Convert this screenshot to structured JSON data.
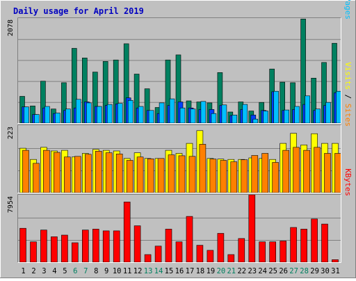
{
  "chart_data": {
    "type": "bar",
    "title": "Daily usage for April 2019",
    "categories": [
      "1",
      "2",
      "3",
      "4",
      "5",
      "6",
      "7",
      "8",
      "9",
      "10",
      "11",
      "12",
      "13",
      "14",
      "15",
      "16",
      "17",
      "18",
      "19",
      "20",
      "21",
      "22",
      "23",
      "24",
      "25",
      "26",
      "27",
      "28",
      "29",
      "30",
      "31"
    ],
    "weekend_days": [
      "6",
      "7",
      "13",
      "14",
      "20",
      "21",
      "27",
      "28"
    ],
    "panels": [
      {
        "id": "hits-files-pages",
        "ymax_label": "2078",
        "ylim": [
          0,
          2078
        ],
        "axis_labels": [
          {
            "text": "Pages",
            "color": "#00c0ff"
          },
          {
            "text": "Files",
            "color": "#0040ff"
          },
          {
            "text": "Hits",
            "color": "#008060"
          }
        ],
        "series": [
          {
            "name": "Hits",
            "color": "#008060",
            "values": [
              530,
              340,
              830,
              280,
              800,
              1480,
              1290,
              1010,
              1220,
              1250,
              1570,
              970,
              680,
              310,
              1250,
              1350,
              440,
              420,
              400,
              1000,
              220,
              420,
              240,
              410,
              1070,
              810,
              800,
              2060,
              890,
              1200,
              1580
            ]
          },
          {
            "name": "Files",
            "color": "#0040ff",
            "values": [
              320,
              170,
              300,
              190,
              250,
              300,
              420,
              330,
              350,
              380,
              500,
              300,
              250,
              190,
              350,
              420,
              300,
              270,
              270,
              350,
              150,
              270,
              160,
              250,
              620,
              250,
              270,
              370,
              250,
              350,
              600
            ]
          },
          {
            "name": "Pages",
            "color": "#00c0ff",
            "values": [
              320,
              170,
              330,
              200,
              280,
              470,
              400,
              330,
              370,
              390,
              450,
              330,
              250,
              400,
              480,
              300,
              280,
              430,
              190,
              360,
              160,
              370,
              80,
              240,
              630,
              260,
              330,
              540,
              280,
              410,
              630
            ]
          }
        ]
      },
      {
        "id": "visits-sites",
        "ymax_label": "223",
        "ylim": [
          0,
          223
        ],
        "axis_labels": [
          {
            "text": "Sites",
            "color": "#ff8000"
          },
          {
            "text": "Visits",
            "color": "#ffff00"
          }
        ],
        "series": [
          {
            "name": "Visits",
            "color": "#ffff00",
            "values": [
              147,
              110,
              150,
              138,
              140,
              118,
              130,
              143,
              140,
              138,
              113,
              132,
              113,
              113,
              140,
              130,
              163,
              205,
              113,
              111,
              110,
              110,
              115,
              113,
              110,
              163,
              196,
              158,
              195,
              163,
              163
            ]
          },
          {
            "name": "Sites",
            "color": "#ff8000",
            "values": [
              140,
              97,
              140,
              133,
              118,
              120,
              127,
              137,
              132,
              128,
              107,
              118,
              112,
              113,
              125,
              122,
              120,
              160,
              111,
              107,
              102,
              109,
              123,
              130,
              100,
              140,
              150,
              140,
              150,
              130,
              130
            ]
          }
        ]
      },
      {
        "id": "kbytes",
        "ymax_label": "7954",
        "ylim": [
          0,
          7954
        ],
        "axis_labels": [
          {
            "text": "KBytes",
            "color": "#ff0000"
          }
        ],
        "series": [
          {
            "name": "KBytes",
            "color": "#ff0000",
            "values": [
              4000,
              2400,
              3800,
              3000,
              3200,
              2300,
              3800,
              3900,
              3700,
              3700,
              7100,
              4300,
              900,
              1900,
              3900,
              2400,
              5400,
              2000,
              1400,
              3400,
              900,
              2800,
              8000,
              2400,
              2400,
              2500,
              4100,
              3900,
              5100,
              4500,
              300
            ]
          }
        ]
      }
    ]
  }
}
